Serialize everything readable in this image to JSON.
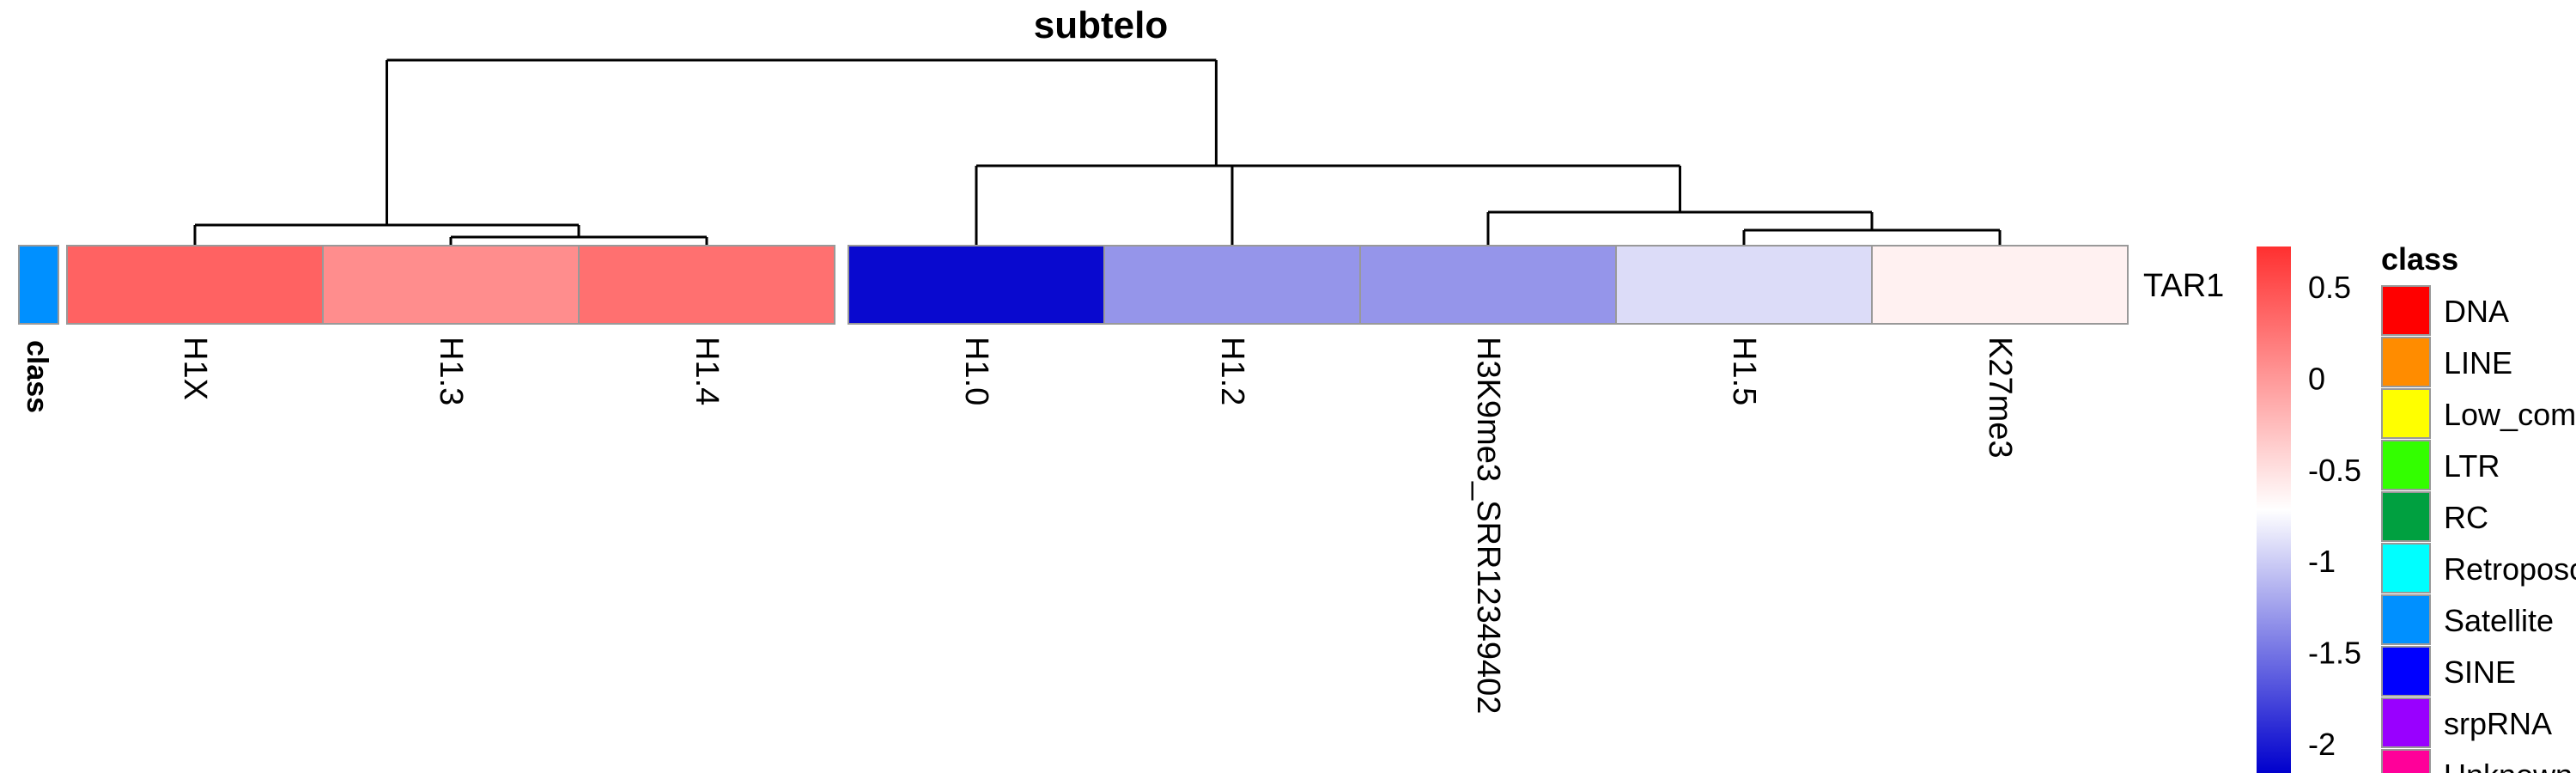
{
  "chart_data": {
    "type": "heatmap",
    "title": "subtelo",
    "row_labels": [
      "TAR1"
    ],
    "column_labels": [
      "H1X",
      "H1.3",
      "H1.4",
      "H1.0",
      "H1.2",
      "H3K9me3_SRR12349402",
      "H1.5",
      "K27me3"
    ],
    "values": [
      [
        0.35,
        0.05,
        0.25,
        -2.15,
        -1.35,
        -1.35,
        -0.95,
        -0.65
      ]
    ],
    "annotation_label": "class",
    "row_annotation": [
      "Satellite"
    ],
    "color_scale": {
      "min": -2.2,
      "max": 0.7,
      "ticks": [
        0.5,
        0,
        -0.5,
        -1,
        -1.5,
        -2
      ],
      "tick_labels": [
        "0.5",
        "0",
        "-0.5",
        "-1",
        "-1.5",
        "-2"
      ],
      "low_color": "#0000cd",
      "mid_color": "#ffffff",
      "high_color": "#ff3030",
      "mid_value": -0.75
    },
    "legend": {
      "title": "class",
      "entries": [
        {
          "label": "DNA",
          "color": "#ff0000"
        },
        {
          "label": "LINE",
          "color": "#ff8c00"
        },
        {
          "label": "Low_complexity",
          "color": "#ffff00"
        },
        {
          "label": "LTR",
          "color": "#33ff00"
        },
        {
          "label": "RC",
          "color": "#00a040"
        },
        {
          "label": "Retroposon",
          "color": "#00ffff"
        },
        {
          "label": "Satellite",
          "color": "#0090ff"
        },
        {
          "label": "SINE",
          "color": "#0000ff"
        },
        {
          "label": "srpRNA",
          "color": "#9900ff"
        },
        {
          "label": "Unknown",
          "color": "#ff0099"
        }
      ]
    },
    "column_gap_after": "H1.4"
  }
}
